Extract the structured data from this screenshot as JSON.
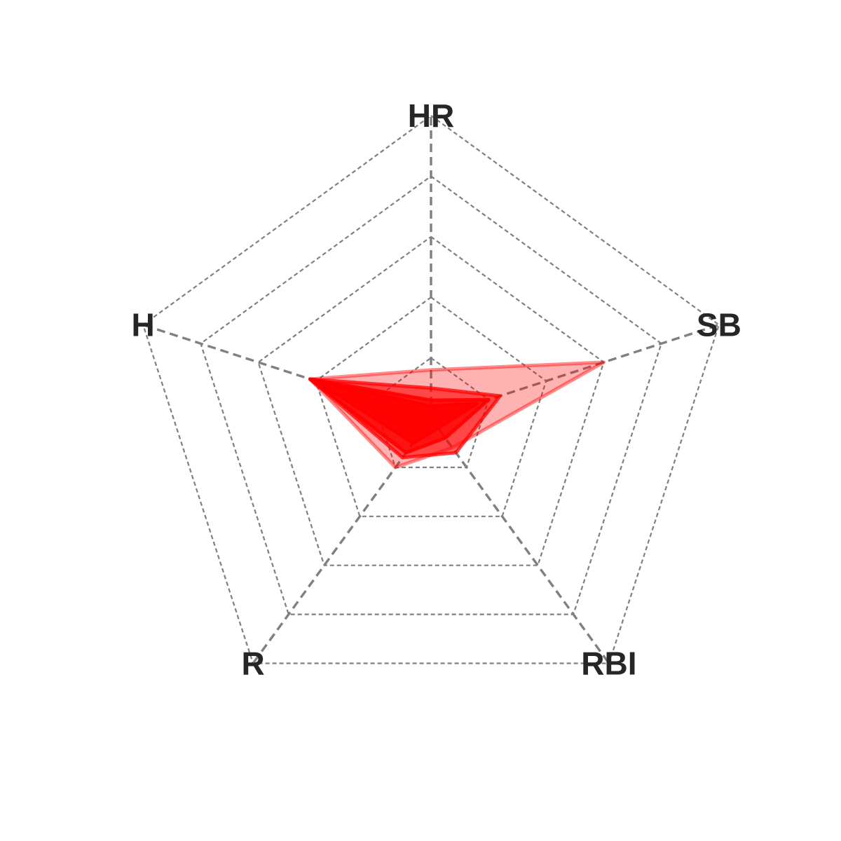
{
  "chart_data": {
    "type": "radar",
    "axes": [
      "HR",
      "SB",
      "RBI",
      "R",
      "H"
    ],
    "rlim": [
      0,
      5
    ],
    "ring_levels": [
      1,
      2,
      3,
      4,
      5
    ],
    "grid": true,
    "grid_style": "dashed",
    "grid_color": "#808080",
    "series": [
      {
        "values": [
          0.8,
          3.0,
          0.6,
          1.0,
          2.1
        ],
        "color": "#ff0000",
        "fill_opacity": 0.3
      },
      {
        "values": [
          0.5,
          1.2,
          0.7,
          0.8,
          2.1
        ],
        "color": "#ff0000",
        "fill_opacity": 0.6
      },
      {
        "values": [
          0.3,
          1.0,
          0.4,
          0.7,
          2.1
        ],
        "color": "#ff0000",
        "fill_opacity": 0.75
      },
      {
        "values": [
          0.2,
          0.8,
          0.2,
          0.5,
          2.0
        ],
        "color": "#ff0000",
        "fill_opacity": 0.85
      }
    ]
  }
}
